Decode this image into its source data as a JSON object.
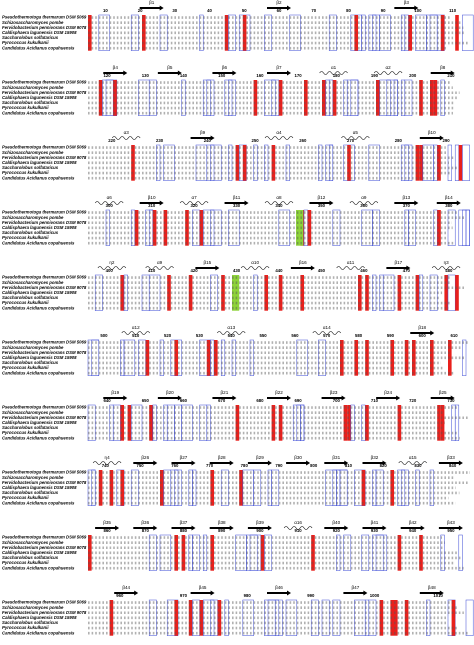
{
  "species": [
    "Pseudothermotoga thermarum DSM 5069",
    "Schizosaccharomyces pombe",
    "Fervidobacterium pennivorans DSM 9078",
    "Caldisphaera lagunensis DSM 15908",
    "Saccharolobus solfataricus",
    "Pyrococcus kukulkanii",
    "Candidatus Acidianus copahuensis"
  ],
  "blocks": [
    {
      "structure": [
        "β1",
        "β2",
        "β3"
      ],
      "numbers": [
        "10",
        "20",
        "30",
        "40",
        "50",
        "60",
        "70",
        "80",
        "90",
        "100",
        "110"
      ]
    },
    {
      "structure": [
        "β4",
        "β5",
        "β6",
        "β7",
        "α1",
        "α2",
        "β8"
      ],
      "numbers": [
        "120",
        "130",
        "140",
        "150",
        "160",
        "170",
        "180",
        "190",
        "200",
        "210"
      ]
    },
    {
      "structure": [
        "α3",
        "β9",
        "α4",
        "α5",
        "β10"
      ],
      "numbers": [
        "220",
        "230",
        "240",
        "250",
        "260",
        "270",
        "280",
        "290"
      ]
    },
    {
      "structure": [
        "α6",
        "β10",
        "α7",
        "β11",
        "α8",
        "β12",
        "α9",
        "β13",
        "β14"
      ],
      "numbers": [
        "300",
        "310",
        "320",
        "330",
        "340",
        "350",
        "360",
        "370",
        "380"
      ]
    },
    {
      "structure": [
        "η2",
        "α9",
        "β15",
        "α10",
        "β16",
        "α11",
        "β17",
        "η3"
      ],
      "numbers": [
        "400",
        "410",
        "420",
        "430",
        "440",
        "450",
        "460",
        "470",
        "480"
      ]
    },
    {
      "structure": [
        "α12",
        "α13",
        "α14",
        "β18"
      ],
      "numbers": [
        "500",
        "510",
        "520",
        "530",
        "540",
        "550",
        "560",
        "570",
        "580",
        "590",
        "600",
        "610"
      ]
    },
    {
      "structure": [
        "β19",
        "β20",
        "β21",
        "β22",
        "β23",
        "β24",
        "β25"
      ],
      "numbers": [
        "640",
        "650",
        "660",
        "670",
        "680",
        "690",
        "700",
        "710",
        "720",
        "730"
      ]
    },
    {
      "structure": [
        "η4",
        "β26",
        "β27",
        "β28",
        "β29",
        "β30",
        "β31",
        "β32",
        "α15",
        "β33"
      ],
      "numbers": [
        "740",
        "750",
        "760",
        "770",
        "780",
        "790",
        "800",
        "810",
        "820",
        "830",
        "840"
      ]
    },
    {
      "structure": [
        "β35",
        "β36",
        "β37",
        "β38",
        "β39",
        "α16",
        "β40",
        "β41",
        "β42",
        "β43"
      ],
      "numbers": [
        "860",
        "870",
        "880",
        "890",
        "900",
        "910",
        "920",
        "930",
        "940",
        "950"
      ]
    },
    {
      "structure": [
        "β44",
        "β45",
        "β46",
        "β47",
        "β48"
      ],
      "numbers": [
        "960",
        "970",
        "980",
        "990",
        "1000",
        "1010"
      ]
    }
  ]
}
